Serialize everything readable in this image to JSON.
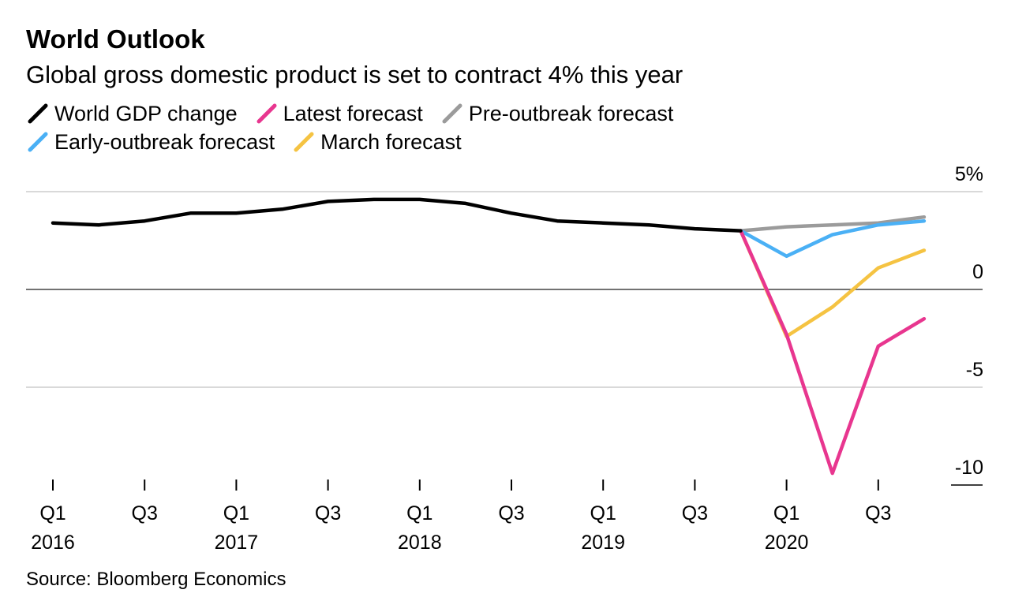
{
  "chart_data": {
    "type": "line",
    "title": "World Outlook",
    "subtitle": "Global gross domestic product is set to contract 4% this year",
    "source": "Source: Bloomberg Economics",
    "xlabel": "",
    "ylabel": "",
    "ylim": [
      -10.5,
      5
    ],
    "y_ticks": [
      {
        "value": 5,
        "label": "5%"
      },
      {
        "value": 0,
        "label": "0"
      },
      {
        "value": -5,
        "label": "-5"
      },
      {
        "value": -10,
        "label": "-10"
      }
    ],
    "x_ticks": [
      {
        "index": 0,
        "quarter": "Q1",
        "year": "2016"
      },
      {
        "index": 2,
        "quarter": "Q3",
        "year": ""
      },
      {
        "index": 4,
        "quarter": "Q1",
        "year": "2017"
      },
      {
        "index": 6,
        "quarter": "Q3",
        "year": ""
      },
      {
        "index": 8,
        "quarter": "Q1",
        "year": "2018"
      },
      {
        "index": 10,
        "quarter": "Q3",
        "year": ""
      },
      {
        "index": 12,
        "quarter": "Q1",
        "year": "2019"
      },
      {
        "index": 14,
        "quarter": "Q3",
        "year": ""
      },
      {
        "index": 16,
        "quarter": "Q1",
        "year": "2020"
      },
      {
        "index": 18,
        "quarter": "Q3",
        "year": ""
      }
    ],
    "x_count": 20,
    "grid": true,
    "legend_position": "top-left",
    "series": [
      {
        "name": "World GDP change",
        "color": "#000000",
        "start_index": 0,
        "values": [
          3.4,
          3.3,
          3.5,
          3.9,
          3.9,
          4.1,
          4.5,
          4.6,
          4.6,
          4.4,
          3.9,
          3.5,
          3.4,
          3.3,
          3.1,
          3.0
        ]
      },
      {
        "name": "Latest forecast",
        "color": "#e8368f",
        "start_index": 15,
        "values": [
          3.0,
          -2.3,
          -9.4,
          -2.9,
          -1.5
        ]
      },
      {
        "name": "Pre-outbreak forecast",
        "color": "#9b9b9b",
        "start_index": 15,
        "values": [
          3.0,
          3.2,
          3.3,
          3.4,
          3.7
        ]
      },
      {
        "name": "Early-outbreak forecast",
        "color": "#4ab0f5",
        "start_index": 15,
        "values": [
          3.0,
          1.7,
          2.8,
          3.3,
          3.5
        ]
      },
      {
        "name": "March forecast",
        "color": "#f5c342",
        "start_index": 15,
        "values": [
          3.0,
          -2.4,
          -0.9,
          1.1,
          2.0
        ]
      }
    ]
  }
}
